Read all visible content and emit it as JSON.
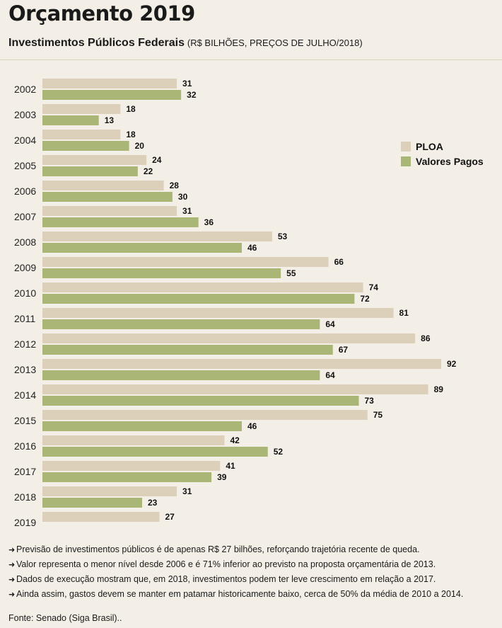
{
  "header": {
    "title": "Orçamento 2019",
    "subtitle": "Investimentos Públicos Federais",
    "unit": "(R$ BILHÕES, PREÇOS DE JULHO/2018)"
  },
  "colors": {
    "ploa": "#dcd0bb",
    "pagos": "#aab676",
    "background": "#f3efe6"
  },
  "chart_data": {
    "type": "bar",
    "orientation": "horizontal",
    "categories": [
      "2002",
      "2003",
      "2004",
      "2005",
      "2006",
      "2007",
      "2008",
      "2009",
      "2010",
      "2011",
      "2012",
      "2013",
      "2014",
      "2015",
      "2016",
      "2017",
      "2018",
      "2019"
    ],
    "series": [
      {
        "name": "PLOA",
        "values": [
          31,
          18,
          18,
          24,
          28,
          31,
          53,
          66,
          74,
          81,
          86,
          92,
          89,
          75,
          42,
          41,
          31,
          27
        ]
      },
      {
        "name": "Valores Pagos",
        "values": [
          32,
          13,
          20,
          22,
          30,
          36,
          46,
          55,
          72,
          64,
          67,
          64,
          73,
          46,
          52,
          39,
          23,
          null
        ]
      }
    ],
    "xlim": [
      0,
      92
    ],
    "legend_position": "top-right"
  },
  "notes": [
    "Previsão de investimentos públicos é de apenas R$ 27 bilhões, reforçando trajetória recente de queda.",
    "Valor representa o menor nível desde 2006 e é 71% inferior ao previsto na proposta orçamentária de 2013.",
    "Dados de execução mostram que, em 2018, investimentos podem ter leve crescimento em relação a 2017.",
    "Ainda assim, gastos devem se manter em patamar historicamente baixo, cerca de 50% da média de 2010 a 2014."
  ],
  "note_marker": "➜",
  "source": "Fonte: Senado (Siga Brasil).."
}
